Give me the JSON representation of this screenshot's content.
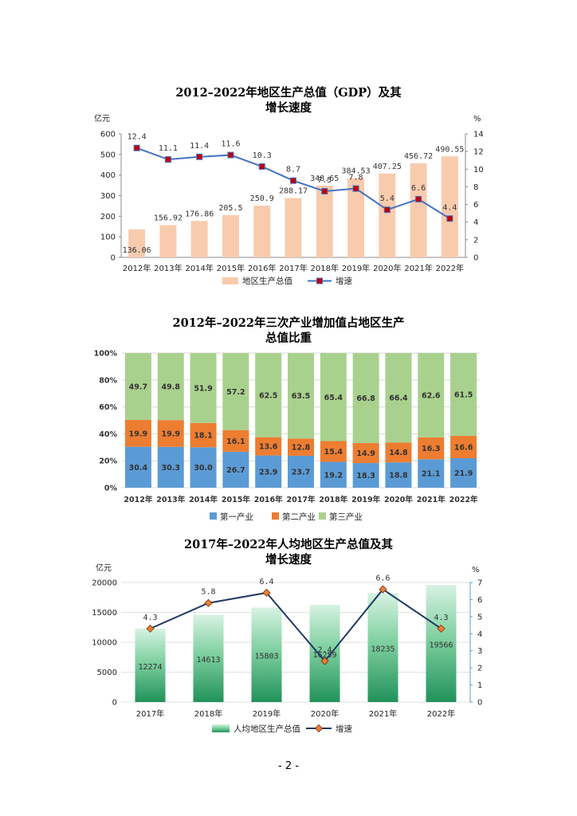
{
  "page_number": "- 2 -",
  "colors": {
    "gdp_bar": "#F8CBAD",
    "line_blue": "#4472C4",
    "marker_red": "#C00000",
    "primary": "#5B9BD5",
    "secondary": "#ED7D31",
    "tertiary": "#A9D18E",
    "per_capita_bar": "#21925A",
    "diamond": "#ED7D31",
    "navy_line": "#203864"
  },
  "chart_data": [
    {
      "type": "bar",
      "title_lines": [
        "2012–2022年地区生产总值（GDP）及其",
        "增长速度"
      ],
      "left_unit": "亿元",
      "right_unit": "%",
      "categories": [
        "2012年",
        "2013年",
        "2014年",
        "2015年",
        "2016年",
        "2017年",
        "2018年",
        "2019年",
        "2020年",
        "2021年",
        "2022年"
      ],
      "series": [
        {
          "name": "地区生产总值",
          "type": "bar",
          "axis": "left",
          "values": [
            136.06,
            156.92,
            176.86,
            205.5,
            250.9,
            288.17,
            348.65,
            384.53,
            407.25,
            456.72,
            490.55
          ],
          "labels": [
            "136.06",
            "156.92",
            "176.86",
            "205.5",
            "250.9",
            "288.17",
            "348.65",
            "384.53",
            "407.25",
            "456.72",
            "490.55"
          ]
        },
        {
          "name": "增速",
          "type": "line",
          "axis": "right",
          "values": [
            12.4,
            11.1,
            11.4,
            11.6,
            10.3,
            8.7,
            7.5,
            7.8,
            5.4,
            6.6,
            4.4
          ],
          "labels": [
            "12.4",
            "11.1",
            "11.4",
            "11.6",
            "10.3",
            "8.7",
            "7.5",
            "7.8",
            "5.4",
            "6.6",
            "4.4"
          ]
        }
      ],
      "ylim": [
        0,
        600
      ],
      "yticks": [
        "0",
        "100",
        "200",
        "300",
        "400",
        "500",
        "600"
      ],
      "y2lim": [
        0,
        14
      ],
      "y2ticks": [
        "0",
        "2",
        "4",
        "6",
        "8",
        "10",
        "12",
        "14"
      ]
    },
    {
      "type": "bar",
      "stacked": true,
      "title_lines": [
        "2012年–2022年三次产业增加值占地区生产",
        "总值比重"
      ],
      "categories": [
        "2012年",
        "2013年",
        "2014年",
        "2015年",
        "2016年",
        "2017年",
        "2018年",
        "2019年",
        "2020年",
        "2021年",
        "2022年"
      ],
      "series": [
        {
          "name": "第一产业",
          "values": [
            30.4,
            30.3,
            30.0,
            26.7,
            23.9,
            23.7,
            19.2,
            18.3,
            18.8,
            21.1,
            21.9
          ],
          "labels": [
            "30.4",
            "30.3",
            "30.0",
            "26.7",
            "23.9",
            "23.7",
            "19.2",
            "18.3",
            "18.8",
            "21.1",
            "21.9"
          ]
        },
        {
          "name": "第二产业",
          "values": [
            19.9,
            19.9,
            18.1,
            16.1,
            13.6,
            12.8,
            15.4,
            14.9,
            14.8,
            16.3,
            16.6
          ],
          "labels": [
            "19.9",
            "19.9",
            "18.1",
            "16.1",
            "13.6",
            "12.8",
            "15.4",
            "14.9",
            "14.8",
            "16.3",
            "16.6"
          ]
        },
        {
          "name": "第三产业",
          "values": [
            49.7,
            49.8,
            51.9,
            57.2,
            62.5,
            63.5,
            65.4,
            66.8,
            66.4,
            62.6,
            61.5
          ],
          "labels": [
            "49.7",
            "49.8",
            "51.9",
            "57.2",
            "62.5",
            "63.5",
            "65.4",
            "66.8",
            "66.4",
            "62.6",
            "61.5"
          ]
        }
      ],
      "ylim": [
        0,
        100
      ],
      "yticks": [
        "0%",
        "20%",
        "40%",
        "60%",
        "80%",
        "100%"
      ]
    },
    {
      "type": "bar",
      "title_lines": [
        "2017年–2022年人均地区生产总值及其",
        "增长速度"
      ],
      "left_unit": "亿元",
      "right_unit": "%",
      "categories": [
        "2017年",
        "2018年",
        "2019年",
        "2020年",
        "2021年",
        "2022年"
      ],
      "series": [
        {
          "name": "人均地区生产总值",
          "type": "bar",
          "axis": "left",
          "values": [
            12274,
            14613,
            15803,
            16259,
            18235,
            19566
          ],
          "labels": [
            "12274",
            "14613",
            "15803",
            "16259",
            "18235",
            "19566"
          ]
        },
        {
          "name": "增速",
          "type": "line",
          "axis": "right",
          "values": [
            4.3,
            5.8,
            6.4,
            2.4,
            6.6,
            4.3
          ],
          "labels": [
            "4.3",
            "5.8",
            "6.4",
            "2.4",
            "6.6",
            "4.3"
          ]
        }
      ],
      "ylim": [
        0,
        20000
      ],
      "yticks": [
        "0",
        "5000",
        "10000",
        "15000",
        "20000"
      ],
      "y2lim": [
        0,
        7
      ],
      "y2ticks": [
        "0",
        "1",
        "2",
        "3",
        "4",
        "5",
        "6",
        "7"
      ]
    }
  ]
}
